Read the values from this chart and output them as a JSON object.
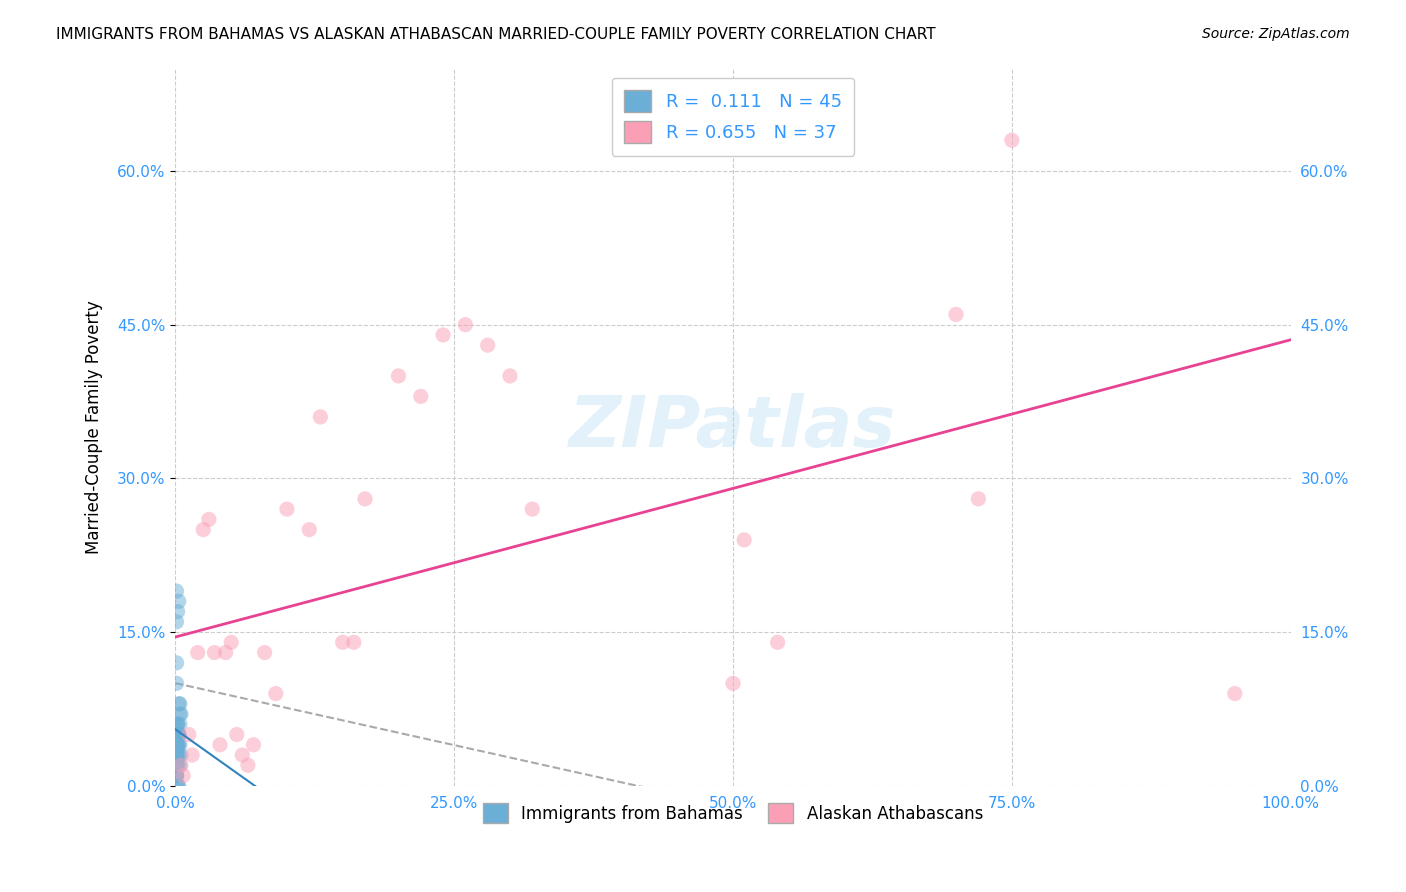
{
  "title": "IMMIGRANTS FROM BAHAMAS VS ALASKAN ATHABASCAN MARRIED-COUPLE FAMILY POVERTY CORRELATION CHART",
  "source": "Source: ZipAtlas.com",
  "xlabel_bottom": "",
  "ylabel": "Married-Couple Family Poverty",
  "series1_label": "Immigrants from Bahamas",
  "series2_label": "Alaskan Athabascans",
  "R1": 0.111,
  "N1": 45,
  "R2": 0.655,
  "N2": 37,
  "color1": "#6baed6",
  "color2": "#fa9fb5",
  "trendline1_color": "#3182bd",
  "trendline2_color": "#e84393",
  "dashed_line_color": "#aaaaaa",
  "watermark": "ZIPatlas",
  "xlim": [
    0,
    1.0
  ],
  "ylim": [
    0,
    0.7
  ],
  "xticks": [
    0.0,
    0.25,
    0.5,
    0.75,
    1.0
  ],
  "xtick_labels": [
    "0.0%",
    "25.0%",
    "50.0%",
    "75.0%",
    "100.0%"
  ],
  "yticks": [
    0.0,
    0.15,
    0.3,
    0.45,
    0.6
  ],
  "ytick_labels": [
    "0.0%",
    "15.0%",
    "30.0%",
    "45.0%",
    "60.0%"
  ],
  "series1_x": [
    0.002,
    0.001,
    0.001,
    0.003,
    0.002,
    0.001,
    0.004,
    0.001,
    0.002,
    0.003,
    0.001,
    0.005,
    0.002,
    0.003,
    0.001,
    0.002,
    0.001,
    0.004,
    0.003,
    0.002,
    0.001,
    0.003,
    0.002,
    0.001,
    0.004,
    0.002,
    0.003,
    0.001,
    0.002,
    0.003,
    0.004,
    0.001,
    0.002,
    0.005,
    0.001,
    0.003,
    0.002,
    0.001,
    0.003,
    0.002,
    0.001,
    0.004,
    0.002,
    0.001,
    0.003
  ],
  "series1_y": [
    0.05,
    0.04,
    0.03,
    0.05,
    0.02,
    0.06,
    0.08,
    0.03,
    0.04,
    0.05,
    0.01,
    0.07,
    0.06,
    0.04,
    0.03,
    0.05,
    0.02,
    0.07,
    0.05,
    0.04,
    0.1,
    0.03,
    0.05,
    0.12,
    0.04,
    0.06,
    0.08,
    0.19,
    0.05,
    0.18,
    0.06,
    0.16,
    0.17,
    0.03,
    0.04,
    0.05,
    0.02,
    0.01,
    0.03,
    0.0,
    0.01,
    0.02,
    0.0,
    0.01,
    0.0
  ],
  "series2_x": [
    0.005,
    0.007,
    0.012,
    0.015,
    0.02,
    0.025,
    0.03,
    0.035,
    0.04,
    0.045,
    0.05,
    0.055,
    0.06,
    0.065,
    0.07,
    0.08,
    0.09,
    0.1,
    0.12,
    0.13,
    0.15,
    0.16,
    0.17,
    0.2,
    0.22,
    0.24,
    0.26,
    0.28,
    0.3,
    0.32,
    0.5,
    0.51,
    0.54,
    0.7,
    0.72,
    0.75,
    0.95
  ],
  "series2_y": [
    0.02,
    0.01,
    0.05,
    0.03,
    0.13,
    0.25,
    0.26,
    0.13,
    0.04,
    0.13,
    0.14,
    0.05,
    0.03,
    0.02,
    0.04,
    0.13,
    0.09,
    0.27,
    0.25,
    0.36,
    0.14,
    0.14,
    0.28,
    0.4,
    0.38,
    0.44,
    0.45,
    0.43,
    0.4,
    0.27,
    0.1,
    0.24,
    0.14,
    0.46,
    0.28,
    0.63,
    0.09
  ],
  "marker_size": 120,
  "marker_alpha": 0.5,
  "figsize": [
    14.06,
    8.92
  ],
  "dpi": 100
}
